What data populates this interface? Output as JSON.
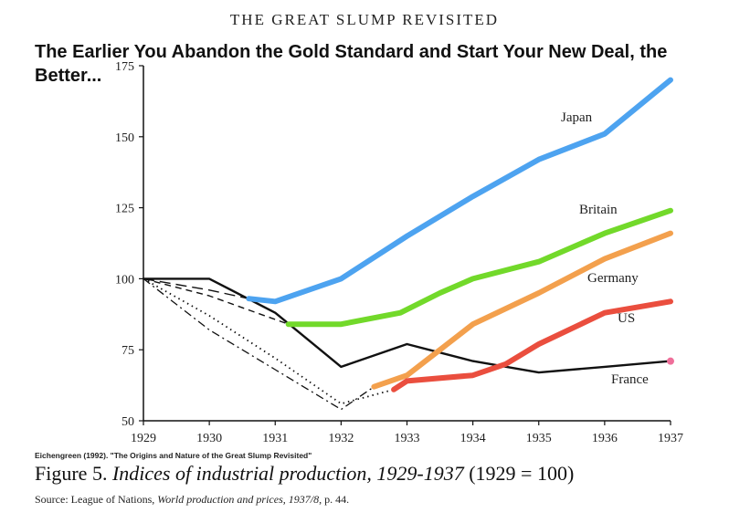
{
  "header": "THE GREAT SLUMP REVISITED",
  "overlay_title": "The Earlier You Abandon the Gold Standard and Start Your New Deal, the Better...",
  "citation": "Eichengreen (1992). \"The Origins and Nature of the Great Slump Revisited\"",
  "caption": {
    "prefix": "Figure 5. ",
    "italic": "Indices of industrial production, 1929-1937",
    "suffix": " (1929 = 100)"
  },
  "source": {
    "lead": "Source: League of Nations, ",
    "italic": "World production and prices, 1937/8",
    "tail": ", p. 44."
  },
  "chart_data": {
    "type": "line",
    "title": "The Earlier You Abandon the Gold Standard and Start Your New Deal, the Better...",
    "xlabel": "",
    "ylabel": "",
    "xlim": [
      1929,
      1937
    ],
    "ylim": [
      50,
      175
    ],
    "x_ticks": [
      "1929",
      "1930",
      "1931",
      "1932",
      "1933",
      "1934",
      "1935",
      "1936",
      "1937"
    ],
    "y_ticks": [
      "50",
      "75",
      "100",
      "125",
      "150",
      "175"
    ],
    "grid": false,
    "series": [
      {
        "name": "Japan",
        "color": "#4da3f0",
        "style": "solid-thick",
        "x": [
          1930.6,
          1931,
          1932,
          1933,
          1934,
          1935,
          1936,
          1937
        ],
        "y": [
          93,
          92,
          100,
          115,
          129,
          142,
          151,
          170
        ]
      },
      {
        "name": "Britain",
        "color": "#72d92a",
        "style": "solid-thick",
        "x": [
          1931.2,
          1932,
          1932.9,
          1933.5,
          1934,
          1935,
          1936,
          1937
        ],
        "y": [
          84,
          84,
          88,
          95,
          100,
          106,
          116,
          124
        ]
      },
      {
        "name": "Germany",
        "color": "#f3a04d",
        "style": "solid-thick",
        "x": [
          1932.5,
          1933,
          1933.5,
          1934,
          1935,
          1936,
          1937
        ],
        "y": [
          62,
          66,
          75,
          84,
          95,
          107,
          116
        ]
      },
      {
        "name": "US",
        "color": "#ea4e3e",
        "style": "solid-thick",
        "x": [
          1932.8,
          1933,
          1934,
          1934.5,
          1935,
          1936,
          1937
        ],
        "y": [
          61,
          64,
          66,
          70,
          77,
          88,
          92
        ]
      },
      {
        "name": "France",
        "color": "#111111",
        "style": "solid",
        "x": [
          1929,
          1930,
          1931,
          1932,
          1933,
          1934,
          1935,
          1936,
          1937
        ],
        "y": [
          100,
          100,
          88,
          69,
          77,
          71,
          67,
          69,
          71
        ]
      },
      {
        "name": "",
        "color": "#111111",
        "style": "dashed",
        "x": [
          1929,
          1930,
          1931.2
        ],
        "y": [
          100,
          94,
          84
        ]
      },
      {
        "name": "",
        "color": "#111111",
        "style": "longdash",
        "x": [
          1929,
          1930,
          1930.6
        ],
        "y": [
          100,
          96,
          93
        ]
      },
      {
        "name": "",
        "color": "#111111",
        "style": "dotted",
        "x": [
          1929,
          1930,
          1931,
          1932,
          1932.8
        ],
        "y": [
          100,
          87,
          72,
          56,
          61
        ]
      },
      {
        "name": "",
        "color": "#111111",
        "style": "dashdot",
        "x": [
          1929,
          1930,
          1931,
          1932,
          1932.5
        ],
        "y": [
          100,
          82,
          68,
          54,
          62
        ]
      }
    ],
    "end_marker": {
      "series": "France",
      "x": 1937,
      "y": 71,
      "color": "#ef6f9a"
    }
  }
}
